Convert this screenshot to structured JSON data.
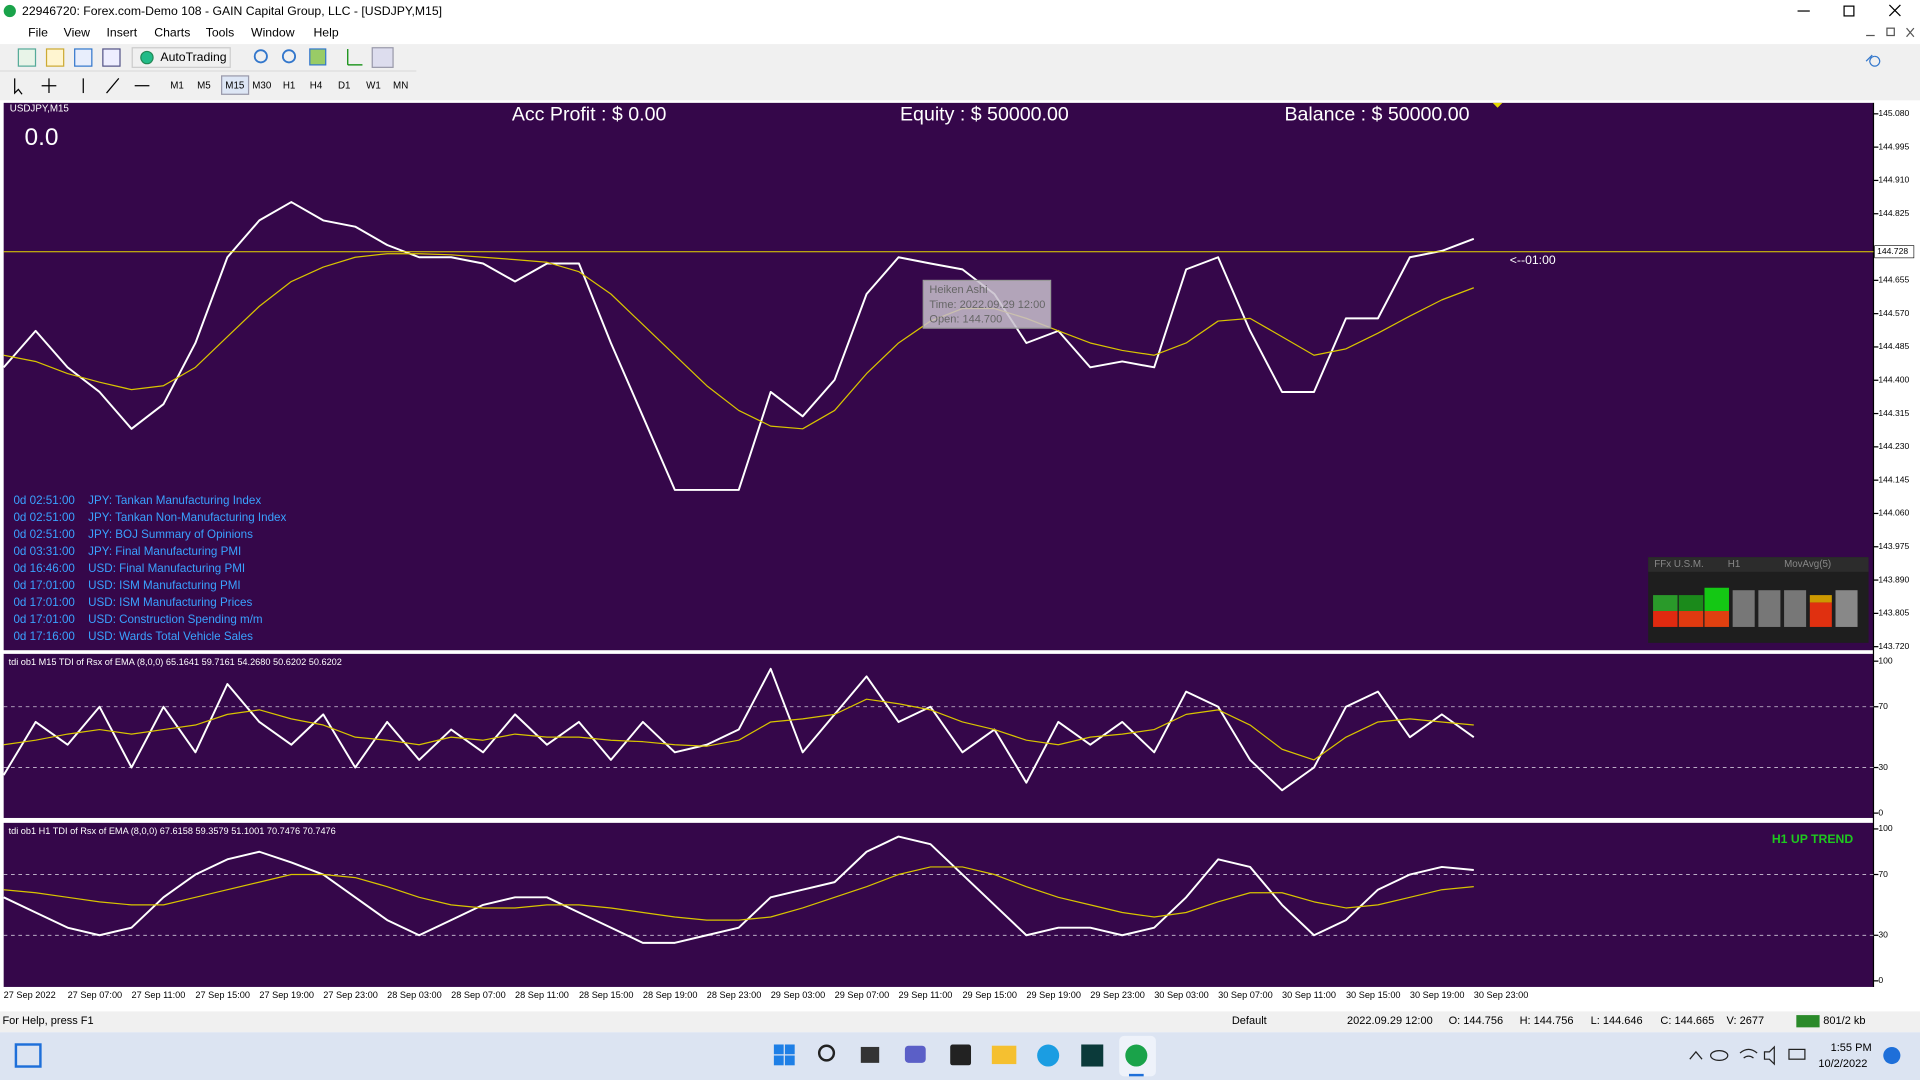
{
  "window": {
    "title": "22946720: Forex.com-Demo 108 - GAIN Capital Group, LLC - [USDJPY,M15]"
  },
  "menu": [
    "File",
    "View",
    "Insert",
    "Charts",
    "Tools",
    "Window",
    "Help"
  ],
  "toolbar": {
    "autotrading": "AutoTrading",
    "timeframes": [
      "M1",
      "M5",
      "M15",
      "M30",
      "H1",
      "H4",
      "D1",
      "W1",
      "MN"
    ],
    "active": 2
  },
  "account": {
    "acc_profit": "Acc Profit : $ 0.00",
    "equity": "Equity : $ 50000.00",
    "balance": "Balance : $ 50000.00",
    "profit_display": "0.0"
  },
  "chart_data": [
    {
      "type": "line",
      "symbol": "USDJPY,M15",
      "categories": [
        "27 Sep 2022",
        null,
        "27 Sep 07:00",
        null,
        "27 Sep 11:00",
        null,
        "27 Sep 15:00",
        null,
        "27 Sep 19:00",
        null,
        "27 Sep 23:00",
        null,
        "28 Sep 03:00",
        null,
        "28 Sep 07:00",
        null,
        "28 Sep 11:00",
        null,
        "28 Sep 15:00",
        null,
        "28 Sep 19:00",
        null,
        "28 Sep 23:00",
        null,
        "29 Sep 03:00",
        null,
        "29 Sep 07:00",
        null,
        "29 Sep 11:00",
        null,
        "29 Sep 15:00",
        null,
        "29 Sep 19:00",
        null,
        "29 Sep 23:00",
        null,
        "30 Sep 03:00",
        null,
        "30 Sep 07:00",
        null,
        "30 Sep 11:00",
        null,
        "30 Sep 15:00",
        null,
        "30 Sep 19:00",
        null,
        "30 Sep 23:00"
      ],
      "series": [
        {
          "color": "#ffffff",
          "values": [
            144.433,
            144.526,
            144.433,
            144.37,
            144.276,
            144.339,
            144.495,
            144.714,
            144.808,
            144.855,
            144.808,
            144.792,
            144.745,
            144.714,
            144.714,
            144.698,
            144.652,
            144.698,
            144.698,
            144.495,
            144.308,
            144.12,
            144.12,
            144.12,
            144.37,
            144.308,
            144.401,
            144.62,
            144.714,
            144.698,
            144.683,
            144.62,
            144.495,
            144.526,
            144.433,
            144.448,
            144.433,
            144.683,
            144.714,
            144.526,
            144.37,
            144.37,
            144.558,
            144.558,
            144.714,
            144.73,
            144.761
          ]
        },
        {
          "color": "#d8c400",
          "values": [
            144.464,
            144.448,
            144.417,
            144.395,
            144.376,
            144.386,
            144.433,
            144.511,
            144.589,
            144.652,
            144.689,
            144.714,
            144.723,
            144.723,
            144.72,
            144.714,
            144.708,
            144.701,
            144.677,
            144.62,
            144.542,
            144.464,
            144.386,
            144.323,
            144.283,
            144.276,
            144.323,
            144.417,
            144.495,
            144.551,
            144.583,
            144.583,
            144.558,
            144.526,
            144.495,
            144.476,
            144.464,
            144.495,
            144.551,
            144.558,
            144.511,
            144.464,
            144.48,
            144.52,
            144.564,
            144.605,
            144.636
          ]
        }
      ],
      "ylim": [
        143.711,
        145.108
      ],
      "yticks": [
        {
          "value": 145.08,
          "label": "145.080"
        },
        144.995,
        {
          "value": 144.91,
          "label": "144.910"
        },
        144.825,
        144.655,
        {
          "value": 144.57,
          "label": "144.570"
        },
        144.485,
        {
          "value": 144.4,
          "label": "144.400"
        },
        144.315,
        {
          "value": 144.23,
          "label": "144.230"
        },
        144.145,
        {
          "value": 144.06,
          "label": "144.060"
        },
        143.975,
        {
          "value": 143.89,
          "label": "143.890"
        },
        143.805,
        {
          "value": 143.72,
          "label": "143.720"
        }
      ],
      "current_price": 144.728,
      "current_price_color": "#e6d800",
      "countdown": "<--01:00"
    },
    {
      "type": "line",
      "title": "tdi ob1 M15 TDI of Rsx of EMA (8,0,0) 65.1641 59.7161 54.2680 50.6202 50.6202",
      "series": [
        {
          "color": "#ffffff",
          "values": [
            25,
            60,
            45,
            70,
            30,
            70,
            40,
            85,
            60,
            45,
            65,
            30,
            60,
            35,
            55,
            40,
            65,
            45,
            60,
            35,
            60,
            40,
            45,
            55,
            95,
            40,
            65,
            90,
            60,
            70,
            40,
            55,
            20,
            60,
            45,
            60,
            40,
            80,
            70,
            35,
            15,
            30,
            70,
            80,
            50,
            65,
            50
          ]
        },
        {
          "color": "#d8c400",
          "values": [
            45,
            48,
            52,
            55,
            52,
            55,
            58,
            65,
            68,
            62,
            58,
            50,
            48,
            45,
            50,
            48,
            52,
            50,
            50,
            48,
            47,
            45,
            44,
            48,
            60,
            62,
            65,
            75,
            72,
            68,
            60,
            55,
            48,
            45,
            50,
            52,
            55,
            65,
            68,
            58,
            42,
            35,
            50,
            60,
            62,
            60,
            58
          ]
        }
      ],
      "ylim": [
        -3.2,
        104.8
      ],
      "yticks": [
        100,
        70,
        30,
        0
      ],
      "levels": [
        70,
        30
      ]
    },
    {
      "type": "line",
      "title": "tdi ob1 H1 TDI of Rsx of EMA (8,0,0) 67.6158 59.3579 51.1001 70.7476 70.7476",
      "annotation": "H1 UP TREND",
      "series": [
        {
          "color": "#ffffff",
          "values": [
            55,
            45,
            35,
            30,
            35,
            55,
            70,
            80,
            85,
            78,
            70,
            55,
            40,
            30,
            40,
            50,
            55,
            55,
            45,
            35,
            25,
            25,
            30,
            35,
            55,
            60,
            65,
            85,
            95,
            90,
            70,
            50,
            30,
            35,
            35,
            30,
            35,
            55,
            80,
            75,
            50,
            30,
            40,
            60,
            70,
            75,
            73
          ]
        },
        {
          "color": "#d8c400",
          "values": [
            60,
            58,
            55,
            52,
            50,
            50,
            55,
            60,
            65,
            70,
            70,
            68,
            62,
            55,
            50,
            48,
            48,
            50,
            50,
            48,
            45,
            42,
            40,
            40,
            42,
            48,
            55,
            62,
            70,
            75,
            75,
            70,
            62,
            55,
            50,
            45,
            42,
            45,
            52,
            58,
            58,
            52,
            48,
            50,
            55,
            60,
            62
          ]
        }
      ],
      "ylim": [
        -4,
        104
      ],
      "yticks": [
        100,
        70,
        30,
        0
      ],
      "levels": [
        70,
        30
      ]
    }
  ],
  "news": [
    {
      "time": "0d 02:51:00",
      "event": "JPY: Tankan Manufacturing Index"
    },
    {
      "time": "0d 02:51:00",
      "event": "JPY: Tankan Non-Manufacturing Index"
    },
    {
      "time": "0d 02:51:00",
      "event": "JPY: BOJ Summary of Opinions"
    },
    {
      "time": "0d 03:31:00",
      "event": "JPY: Final Manufacturing PMI"
    },
    {
      "time": "0d 16:46:00",
      "event": "USD: Final Manufacturing PMI"
    },
    {
      "time": "0d 17:01:00",
      "event": "USD: ISM Manufacturing PMI"
    },
    {
      "time": "0d 17:01:00",
      "event": "USD: ISM Manufacturing Prices"
    },
    {
      "time": "0d 17:01:00",
      "event": "USD: Construction Spending m/m"
    },
    {
      "time": "0d 17:16:00",
      "event": "USD: Wards Total Vehicle Sales"
    }
  ],
  "tooltip": {
    "title": "Heiken Ashi",
    "time": "Time: 2022.09.29 12:00",
    "open": "Open: 144.700"
  },
  "widget": {
    "labels": [
      "FFx U.S.M.",
      "H1",
      "MovAvg(5)"
    ]
  },
  "status_bar": [
    "For Help, press F1",
    "Default",
    "2022.09.29 12:00",
    "O: 144.756",
    "H: 144.756",
    "L: 144.646",
    "C: 144.665",
    "V: 2677",
    "801/2 kb"
  ],
  "taskbar": {
    "time": "1:55 PM",
    "date": "10/2/2022"
  }
}
